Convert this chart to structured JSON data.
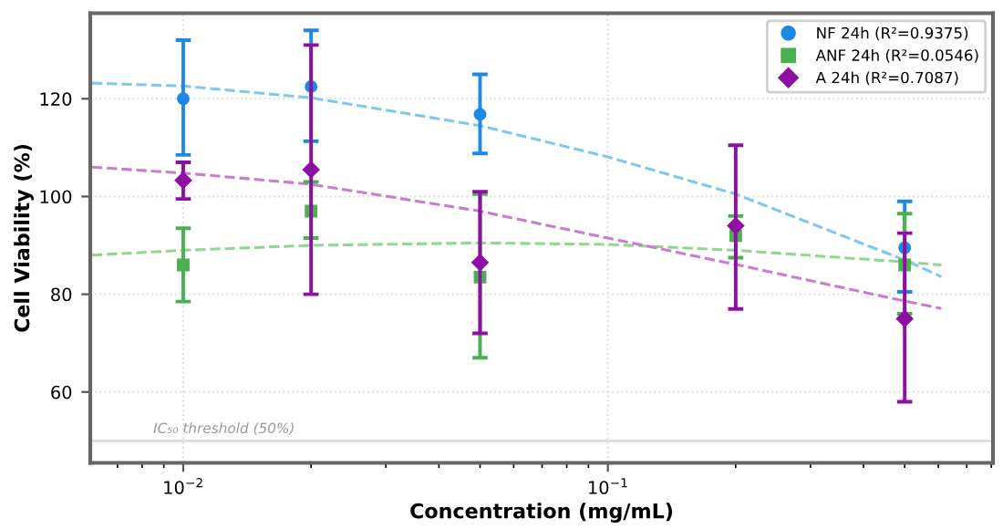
{
  "chart_data": {
    "type": "scatter",
    "xlabel": "Concentration (mg/mL)",
    "ylabel": "Cell Viability (%)",
    "log": "x",
    "xlim": [
      0.00604,
      0.807
    ],
    "ylim": [
      45.5,
      137.5
    ],
    "xticks": [
      {
        "value": 0.01,
        "label": "10$^{−2}$"
      },
      {
        "value": 0.1,
        "label": "10$^{−1}$"
      }
    ],
    "yticks": [
      60,
      80,
      100,
      120
    ],
    "grid": true,
    "legend": "top right",
    "x": [
      0.01,
      0.02,
      0.05,
      0.2,
      0.5
    ],
    "series": [
      {
        "name": "NF 24h (R²=0.9375)",
        "color": "#1e88e5",
        "marker": "circle",
        "values": [
          120,
          122.5,
          116.8,
          null,
          89.5
        ],
        "errors": [
          [
            108.5,
            132
          ],
          [
            111.3,
            134
          ],
          [
            108.8,
            125
          ],
          null,
          [
            80.5,
            99
          ]
        ]
      },
      {
        "name": "ANF 24h (R²=0.0546)",
        "color": "#4caf50",
        "marker": "square",
        "values": [
          86,
          97,
          83.5,
          92,
          86
        ],
        "errors": [
          [
            78.5,
            93.5
          ],
          [
            91.5,
            103
          ],
          [
            67,
            100.5
          ],
          [
            87.5,
            96
          ],
          [
            76,
            96.5
          ]
        ]
      },
      {
        "name": "A 24h (R²=0.7087)",
        "color": "#8e0fa3",
        "marker": "diamond",
        "values": [
          103.3,
          105.5,
          86.5,
          94,
          75
        ],
        "errors": [
          [
            99.5,
            107
          ],
          [
            80,
            131
          ],
          [
            72,
            101
          ],
          [
            77,
            110.5
          ],
          [
            58,
            92.5
          ]
        ]
      },
      {
        "type": "line",
        "line_style": "dashed",
        "color": "#7ec8f0",
        "x": [
          0.0061,
          0.01,
          0.02,
          0.05,
          0.1,
          0.2,
          0.5,
          0.61
        ],
        "values": [
          123.2,
          122.6,
          120.2,
          114.5,
          108.1,
          100.5,
          87,
          83.6
        ]
      },
      {
        "type": "line",
        "line_style": "dashed",
        "color": "#90d890",
        "x": [
          0.0061,
          0.01,
          0.02,
          0.05,
          0.1,
          0.2,
          0.5,
          0.61
        ],
        "values": [
          88,
          89,
          90,
          90.5,
          90.2,
          89,
          86.6,
          86
        ]
      },
      {
        "type": "line",
        "line_style": "dashed",
        "color": "#c77dd0",
        "x": [
          0.0061,
          0.01,
          0.02,
          0.05,
          0.1,
          0.2,
          0.5,
          0.61
        ],
        "values": [
          106,
          104.8,
          102.5,
          97,
          91.5,
          86.1,
          78.6,
          77.1
        ]
      }
    ],
    "ref_lines": [
      {
        "axis": "y",
        "value": 50,
        "label": "IC₅₀ threshold (50%)",
        "color": "#dddddd"
      }
    ]
  }
}
